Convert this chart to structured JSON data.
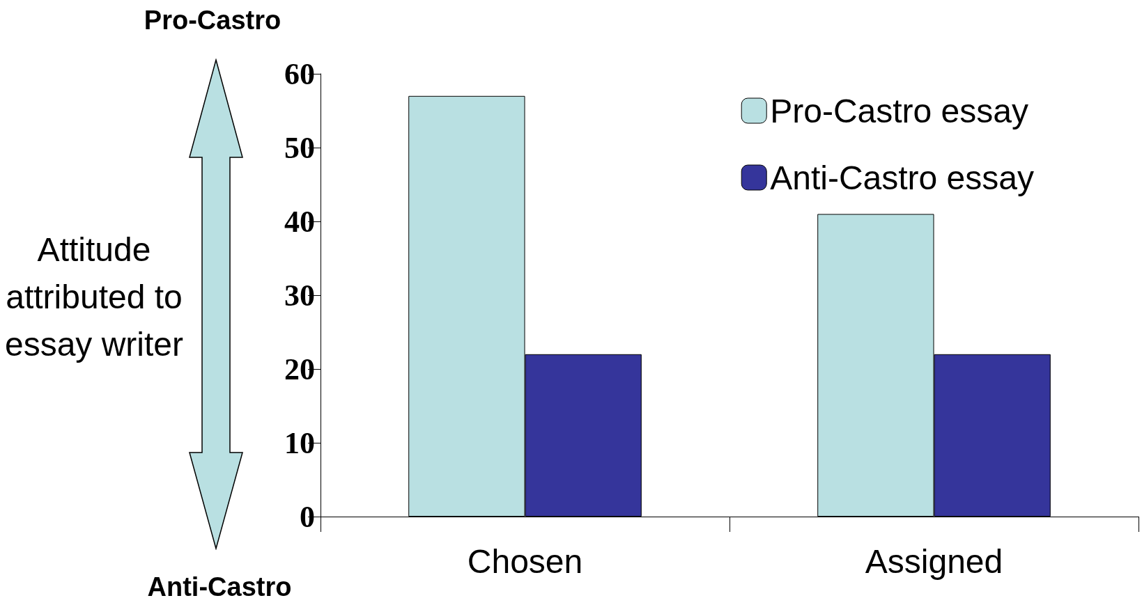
{
  "chart_data": {
    "type": "bar",
    "ylabel": "Attitude attributed to essay writer",
    "annotations": [
      "Pro-Castro",
      "Anti-Castro"
    ],
    "categories": [
      "Chosen",
      "Assigned"
    ],
    "series": [
      {
        "name": "Pro-Castro essay",
        "color": "#b9e0e2",
        "values": [
          57,
          41
        ]
      },
      {
        "name": "Anti-Castro essay",
        "color": "#35359b",
        "values": [
          22,
          22
        ]
      }
    ],
    "ylim": [
      0,
      60
    ],
    "yticks": [
      0,
      10,
      20,
      30,
      40,
      50,
      60
    ],
    "grid": false,
    "legend": "top right"
  }
}
